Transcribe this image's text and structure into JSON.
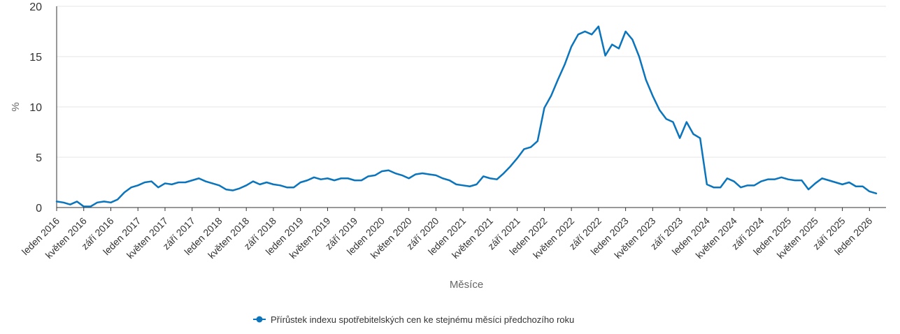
{
  "chart_data": {
    "type": "line",
    "xlabel": "Měsíce",
    "ylabel": "%",
    "ylim": [
      0,
      20
    ],
    "yticks": [
      0,
      5,
      10,
      15,
      20
    ],
    "grid": true,
    "legend_position": "bottom",
    "tick_labels": [
      "leden 2016",
      "květen 2016",
      "září 2016",
      "leden 2017",
      "květen 2017",
      "září 2017",
      "leden 2018",
      "květen 2018",
      "září 2018",
      "leden 2019",
      "květen 2019",
      "září 2019",
      "leden 2020",
      "květen 2020",
      "září 2020",
      "leden 2021",
      "květen 2021",
      "září 2021",
      "leden 2022",
      "květen 2022",
      "září 2022",
      "leden 2023",
      "květen 2023",
      "září 2023",
      "leden 2024",
      "květen 2024",
      "září 2024",
      "leden 2025",
      "květen 2025",
      "září 2025",
      "leden 2026"
    ],
    "series_color": "#0a74bc",
    "series": [
      {
        "name": "Přírůstek indexu spotřebitelských cen ke stejnému měsíci předchozího roku",
        "values": [
          0.6,
          0.5,
          0.3,
          0.6,
          0.1,
          0.1,
          0.5,
          0.6,
          0.5,
          0.8,
          1.5,
          2.0,
          2.2,
          2.5,
          2.6,
          2.0,
          2.4,
          2.3,
          2.5,
          2.5,
          2.7,
          2.9,
          2.6,
          2.4,
          2.2,
          1.8,
          1.7,
          1.9,
          2.2,
          2.6,
          2.3,
          2.5,
          2.3,
          2.2,
          2.0,
          2.0,
          2.5,
          2.7,
          3.0,
          2.8,
          2.9,
          2.7,
          2.9,
          2.9,
          2.7,
          2.7,
          3.1,
          3.2,
          3.6,
          3.7,
          3.4,
          3.2,
          2.9,
          3.3,
          3.4,
          3.3,
          3.2,
          2.9,
          2.7,
          2.3,
          2.2,
          2.1,
          2.3,
          3.1,
          2.9,
          2.8,
          3.4,
          4.1,
          4.9,
          5.8,
          6.0,
          6.6,
          9.9,
          11.1,
          12.7,
          14.2,
          16.0,
          17.2,
          17.5,
          17.2,
          18.0,
          15.1,
          16.2,
          15.8,
          17.5,
          16.7,
          15.0,
          12.7,
          11.1,
          9.7,
          8.8,
          8.5,
          6.9,
          8.5,
          7.3,
          6.9,
          2.3,
          2.0,
          2.0,
          2.9,
          2.6,
          2.0,
          2.2,
          2.2,
          2.6,
          2.8,
          2.8,
          3.0,
          2.8,
          2.7,
          2.7,
          1.8,
          2.4,
          2.9,
          2.7,
          2.5,
          2.3,
          2.5,
          2.1,
          2.1,
          1.6,
          1.4
        ]
      }
    ]
  }
}
